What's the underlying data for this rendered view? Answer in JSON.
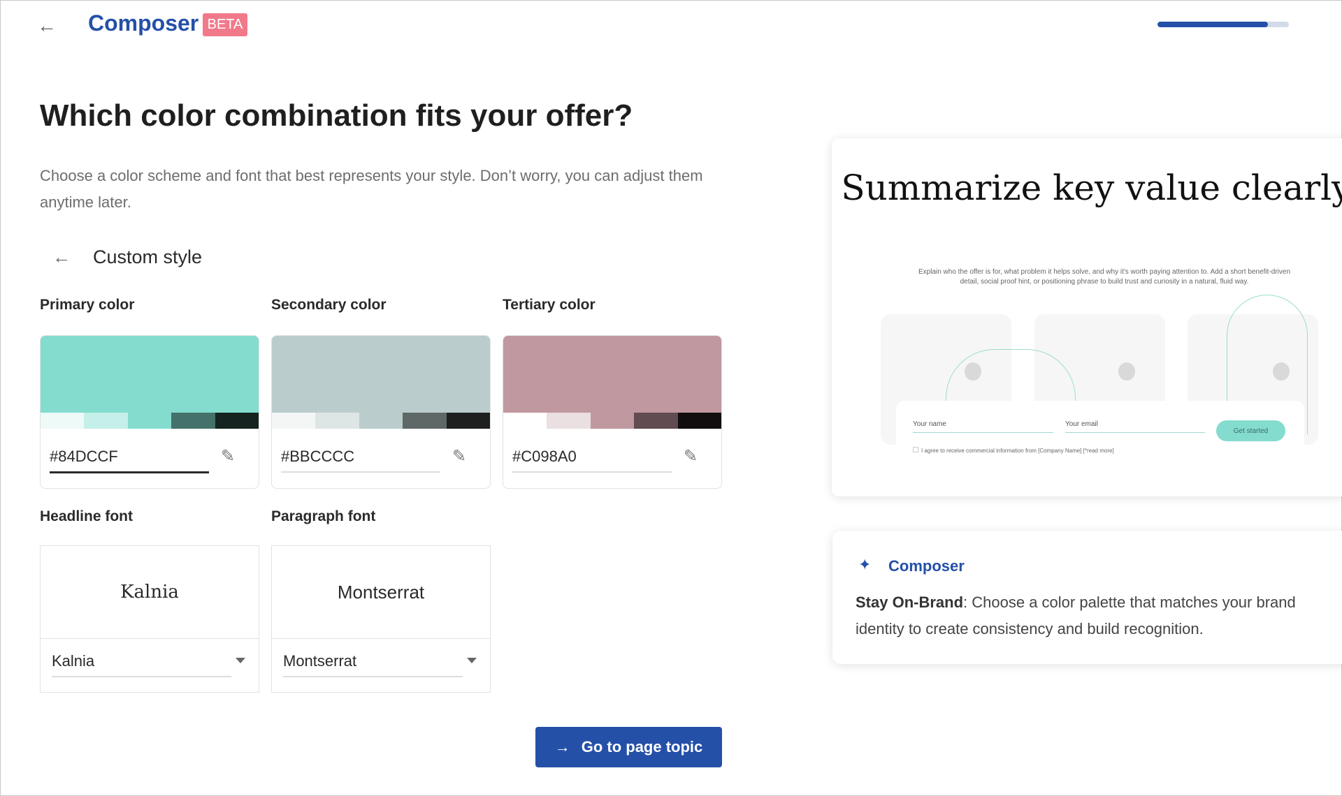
{
  "header": {
    "back_icon": "arrow-left-icon",
    "logo": "Composer",
    "badge": "BETA",
    "progress_percent": 84
  },
  "main": {
    "title": "Which color combination fits your offer?",
    "description": "Choose a color scheme and font that best represents your style. Don’t worry, you can adjust them anytime later.",
    "section_title": "Custom style",
    "colors": [
      {
        "label": "Primary color",
        "value": "#84DCCF",
        "shades": [
          "#eefaf8",
          "#c5efe9",
          "#84dccf",
          "#44716a",
          "#152420"
        ]
      },
      {
        "label": "Secondary color",
        "value": "#BBCCCC",
        "shades": [
          "#f4f6f6",
          "#dee6e5",
          "#bbcccc",
          "#5e6866",
          "#1e1f1f"
        ]
      },
      {
        "label": "Tertiary color",
        "value": "#C098A0",
        "shades": [
          "#ffffff",
          "#eadfe1",
          "#c098a0",
          "#604c51",
          "#120e0f"
        ]
      }
    ],
    "fonts": [
      {
        "label": "Headline font",
        "preview": "Kalnia",
        "value": "Kalnia"
      },
      {
        "label": "Paragraph font",
        "preview": "Montserrat",
        "value": "Montserrat"
      }
    ],
    "next_button": "Go to page topic"
  },
  "preview": {
    "title": "Summarize key value clearly.",
    "subtitle": "Explain who the offer is for, what problem it helps solve, and why it's worth paying attention to. Add a short benefit-driven detail, social proof hint, or positioning phrase to build trust and curiosity in a natural, fluid way.",
    "name_placeholder": "Your name",
    "email_placeholder": "Your email",
    "cta": "Get started",
    "consent": "I agree to receive commercial information from [Company Name] [*read more]"
  },
  "tip": {
    "title": "Composer",
    "bold": "Stay On-Brand",
    "text": ": Choose a color palette that matches your brand identity to create consistency and build recognition."
  },
  "colors": {
    "brand": "#2450a8",
    "beta": "#f07a8a"
  }
}
